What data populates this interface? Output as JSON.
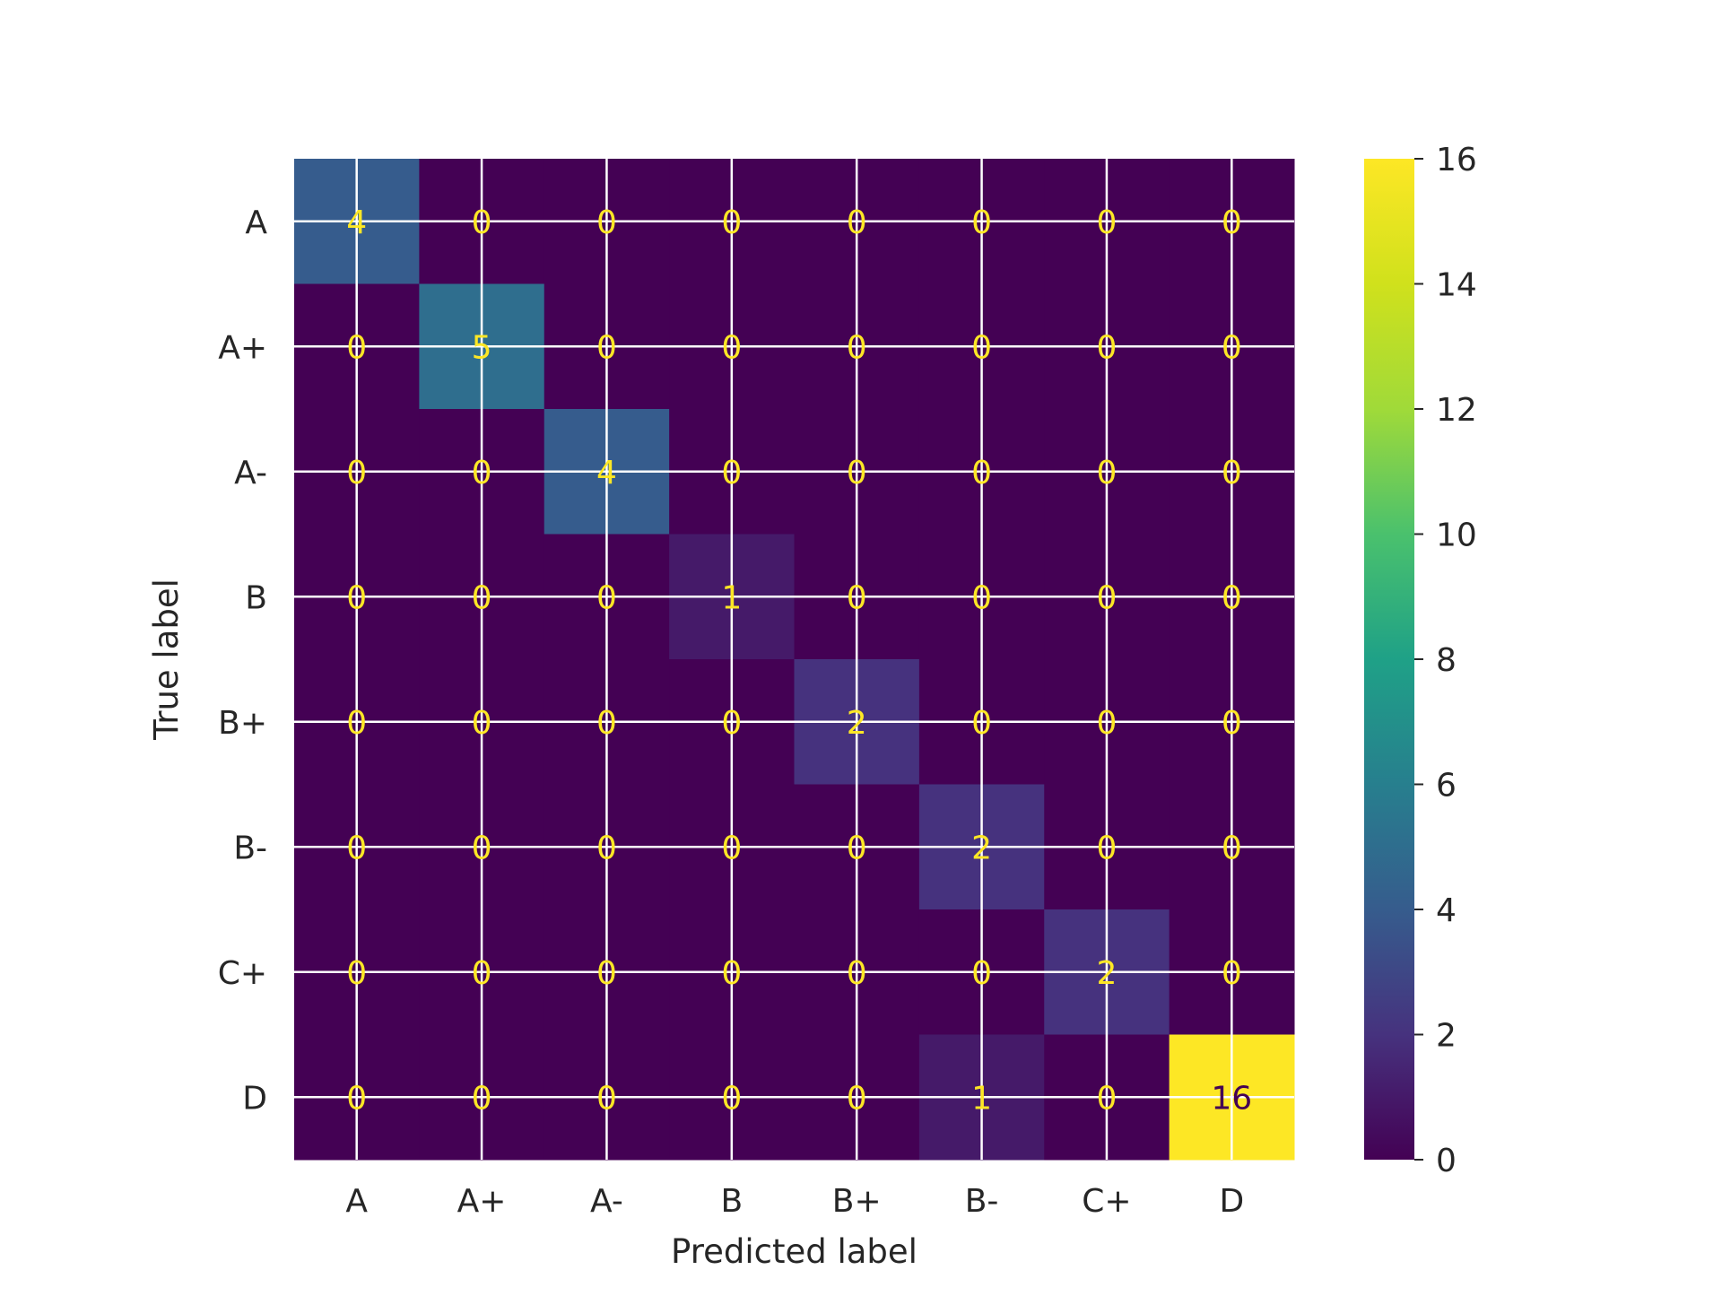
{
  "chart_data": {
    "type": "heatmap",
    "title": "",
    "xlabel": "Predicted label",
    "ylabel": "True label",
    "x_categories": [
      "A",
      "A+",
      "A-",
      "B",
      "B+",
      "B-",
      "C+",
      "D"
    ],
    "y_categories": [
      "A",
      "A+",
      "A-",
      "B",
      "B+",
      "B-",
      "C+",
      "D"
    ],
    "matrix": [
      [
        4,
        0,
        0,
        0,
        0,
        0,
        0,
        0
      ],
      [
        0,
        5,
        0,
        0,
        0,
        0,
        0,
        0
      ],
      [
        0,
        0,
        4,
        0,
        0,
        0,
        0,
        0
      ],
      [
        0,
        0,
        0,
        1,
        0,
        0,
        0,
        0
      ],
      [
        0,
        0,
        0,
        0,
        2,
        0,
        0,
        0
      ],
      [
        0,
        0,
        0,
        0,
        0,
        2,
        0,
        0
      ],
      [
        0,
        0,
        0,
        0,
        0,
        0,
        2,
        0
      ],
      [
        0,
        0,
        0,
        0,
        0,
        1,
        0,
        16
      ]
    ],
    "colormap": "viridis",
    "colorbar": {
      "range": [
        0,
        16
      ],
      "ticks": [
        0,
        2,
        4,
        6,
        8,
        10,
        12,
        14,
        16
      ],
      "tick_labels": [
        "0",
        "2",
        "4",
        "6",
        "8",
        "10",
        "12",
        "14",
        "16"
      ]
    },
    "grid": true,
    "colors": {
      "grid": "#ffffff",
      "text_on_dark": "#fde725",
      "text_on_light": "#440154",
      "axis_text": "#262626"
    }
  }
}
